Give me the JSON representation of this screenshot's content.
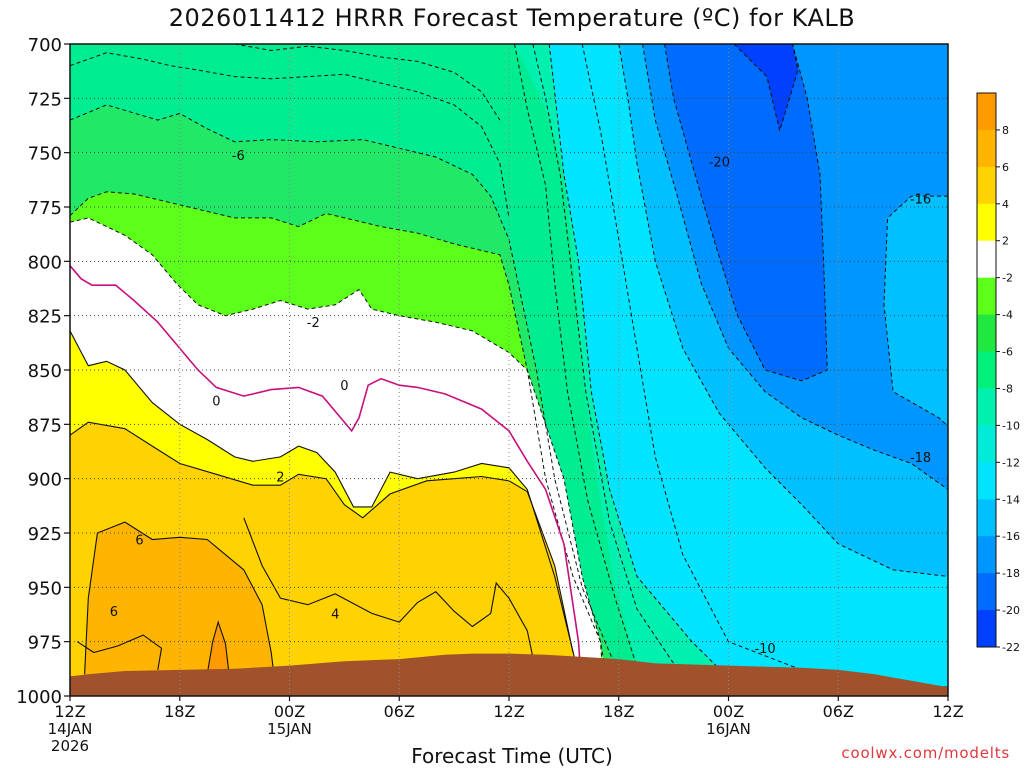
{
  "chart_data": {
    "type": "contour",
    "title": "2026011412 HRRR Forecast Temperature (ºC) for KALB",
    "xlabel": "Forecast Time (UTC)",
    "ylabel": "",
    "credit": "coolwx.com/modelts",
    "y_reversed": true,
    "ylim": [
      1000,
      700
    ],
    "y_ticks": [
      "700",
      "725",
      "750",
      "775",
      "800",
      "825",
      "850",
      "875",
      "900",
      "925",
      "950",
      "975",
      "1000"
    ],
    "x_ticks": [
      {
        "label": "12Z",
        "sub": [
          "14JAN",
          "2026"
        ]
      },
      {
        "label": "18Z",
        "sub": []
      },
      {
        "label": "00Z",
        "sub": [
          "15JAN"
        ]
      },
      {
        "label": "06Z",
        "sub": []
      },
      {
        "label": "12Z",
        "sub": []
      },
      {
        "label": "18Z",
        "sub": []
      },
      {
        "label": "00Z",
        "sub": [
          "16JAN"
        ]
      },
      {
        "label": "06Z",
        "sub": []
      },
      {
        "label": "12Z",
        "sub": []
      }
    ],
    "grid": true,
    "colorbar": {
      "labels": [
        "8",
        "6",
        "4",
        "2",
        "-2",
        "-4",
        "-6",
        "-8",
        "-10",
        "-12",
        "-14",
        "-16",
        "-18",
        "-20",
        "-22"
      ],
      "colors": [
        "#ff9a00",
        "#ffb400",
        "#ffd200",
        "#ffff00",
        "#ffffff",
        "#5cff1a",
        "#20e840",
        "#00f07a",
        "#00f0b0",
        "#00ecd8",
        "#00e4ff",
        "#00c0ff",
        "#0096ff",
        "#006cff",
        "#0040ff"
      ]
    },
    "contour_labels": [
      {
        "text": "-6",
        "x": 9.2,
        "p": 751
      },
      {
        "text": "-20",
        "x": 35.5,
        "p": 754
      },
      {
        "text": "-16",
        "x": 46.5,
        "p": 771
      },
      {
        "text": "-2",
        "x": 13.3,
        "p": 828
      },
      {
        "text": "0",
        "x": 8.0,
        "p": 864
      },
      {
        "text": "0",
        "x": 15.0,
        "p": 857
      },
      {
        "text": "2",
        "x": 11.5,
        "p": 899
      },
      {
        "text": "-18",
        "x": 46.5,
        "p": 890
      },
      {
        "text": "6",
        "x": 3.8,
        "p": 928
      },
      {
        "text": "6",
        "x": 2.4,
        "p": 961
      },
      {
        "text": "4",
        "x": 14.5,
        "p": 962
      },
      {
        "text": "-10",
        "x": 38.0,
        "p": 978
      }
    ]
  }
}
